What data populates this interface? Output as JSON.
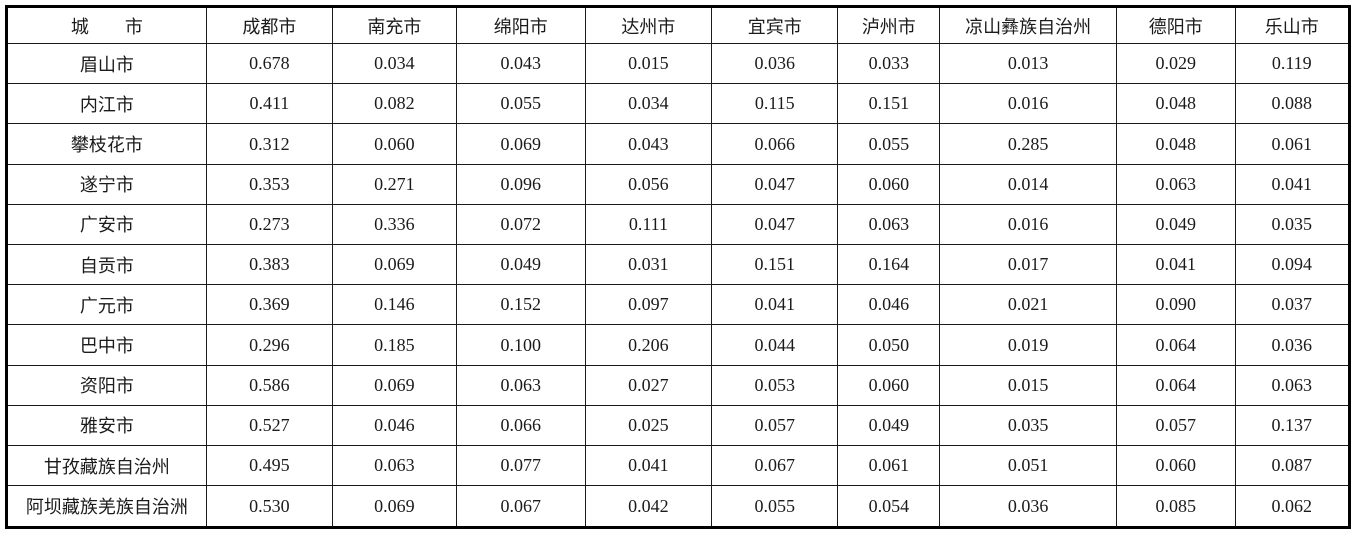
{
  "colors": {
    "background": "#ffffff",
    "border": "#000000",
    "text": "#1b1b1b"
  },
  "chart_data": {
    "type": "table",
    "title": "",
    "header": {
      "row_label_column": "城　　市",
      "columns": [
        "成都市",
        "南充市",
        "绵阳市",
        "达州市",
        "宜宾市",
        "泸州市",
        "凉山彝族自治州",
        "德阳市",
        "乐山市"
      ]
    },
    "rows": [
      {
        "label": "眉山市",
        "values": [
          "0.678",
          "0.034",
          "0.043",
          "0.015",
          "0.036",
          "0.033",
          "0.013",
          "0.029",
          "0.119"
        ]
      },
      {
        "label": "内江市",
        "values": [
          "0.411",
          "0.082",
          "0.055",
          "0.034",
          "0.115",
          "0.151",
          "0.016",
          "0.048",
          "0.088"
        ]
      },
      {
        "label": "攀枝花市",
        "values": [
          "0.312",
          "0.060",
          "0.069",
          "0.043",
          "0.066",
          "0.055",
          "0.285",
          "0.048",
          "0.061"
        ]
      },
      {
        "label": "遂宁市",
        "values": [
          "0.353",
          "0.271",
          "0.096",
          "0.056",
          "0.047",
          "0.060",
          "0.014",
          "0.063",
          "0.041"
        ]
      },
      {
        "label": "广安市",
        "values": [
          "0.273",
          "0.336",
          "0.072",
          "0.111",
          "0.047",
          "0.063",
          "0.016",
          "0.049",
          "0.035"
        ]
      },
      {
        "label": "自贡市",
        "values": [
          "0.383",
          "0.069",
          "0.049",
          "0.031",
          "0.151",
          "0.164",
          "0.017",
          "0.041",
          "0.094"
        ]
      },
      {
        "label": "广元市",
        "values": [
          "0.369",
          "0.146",
          "0.152",
          "0.097",
          "0.041",
          "0.046",
          "0.021",
          "0.090",
          "0.037"
        ]
      },
      {
        "label": "巴中市",
        "values": [
          "0.296",
          "0.185",
          "0.100",
          "0.206",
          "0.044",
          "0.050",
          "0.019",
          "0.064",
          "0.036"
        ]
      },
      {
        "label": "资阳市",
        "values": [
          "0.586",
          "0.069",
          "0.063",
          "0.027",
          "0.053",
          "0.060",
          "0.015",
          "0.064",
          "0.063"
        ]
      },
      {
        "label": "雅安市",
        "values": [
          "0.527",
          "0.046",
          "0.066",
          "0.025",
          "0.057",
          "0.049",
          "0.035",
          "0.057",
          "0.137"
        ]
      },
      {
        "label": "甘孜藏族自治州",
        "values": [
          "0.495",
          "0.063",
          "0.077",
          "0.041",
          "0.067",
          "0.061",
          "0.051",
          "0.060",
          "0.087"
        ]
      },
      {
        "label": "阿坝藏族羌族自治洲",
        "values": [
          "0.530",
          "0.069",
          "0.067",
          "0.042",
          "0.055",
          "0.054",
          "0.036",
          "0.085",
          "0.062"
        ]
      }
    ]
  }
}
